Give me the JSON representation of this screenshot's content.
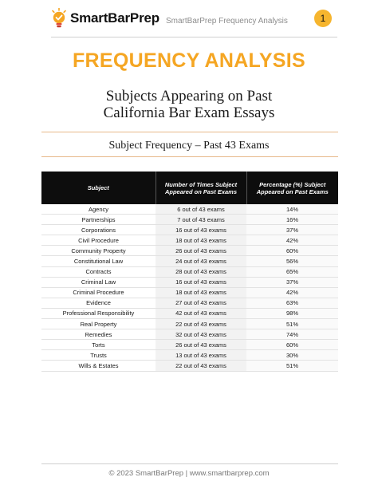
{
  "header": {
    "logo_text": "SmartBarPrep",
    "title": "SmartBarPrep Frequency Analysis",
    "page_number": "1"
  },
  "main": {
    "title": "FREQUENCY ANALYSIS",
    "subtitle_line1": "Subjects Appearing on Past",
    "subtitle_line2": "California Bar Exam Essays",
    "section_title": "Subject Frequency – Past 43 Exams"
  },
  "table": {
    "headers": {
      "subject": "Subject",
      "count": "Number of Times Subject Appeared on Past Exams",
      "percent": "Percentage (%) Subject Appeared on Past Exams"
    },
    "rows": [
      {
        "subject": "Agency",
        "count": "6 out of 43 exams",
        "percent": "14%"
      },
      {
        "subject": "Partnerships",
        "count": "7 out of 43 exams",
        "percent": "16%"
      },
      {
        "subject": "Corporations",
        "count": "16 out of 43 exams",
        "percent": "37%"
      },
      {
        "subject": "Civil Procedure",
        "count": "18 out of 43 exams",
        "percent": "42%"
      },
      {
        "subject": "Community Property",
        "count": "26 out of 43 exams",
        "percent": "60%"
      },
      {
        "subject": "Constitutional Law",
        "count": "24 out of 43 exams",
        "percent": "56%"
      },
      {
        "subject": "Contracts",
        "count": "28 out of 43 exams",
        "percent": "65%"
      },
      {
        "subject": "Criminal Law",
        "count": "16 out of 43 exams",
        "percent": "37%"
      },
      {
        "subject": "Criminal Procedure",
        "count": "18 out of 43 exams",
        "percent": "42%"
      },
      {
        "subject": "Evidence",
        "count": "27 out of 43 exams",
        "percent": "63%"
      },
      {
        "subject": "Professional Responsibility",
        "count": "42 out of 43 exams",
        "percent": "98%"
      },
      {
        "subject": "Real Property",
        "count": "22 out of 43 exams",
        "percent": "51%"
      },
      {
        "subject": "Remedies",
        "count": "32 out of 43 exams",
        "percent": "74%"
      },
      {
        "subject": "Torts",
        "count": "26 out of 43 exams",
        "percent": "60%"
      },
      {
        "subject": "Trusts",
        "count": "13 out of 43 exams",
        "percent": "30%"
      },
      {
        "subject": "Wills & Estates",
        "count": "22 out of 43 exams",
        "percent": "51%"
      }
    ]
  },
  "footer": {
    "text": "© 2023 SmartBarPrep |  www.smartbarprep.com"
  },
  "icons": {
    "logo": "lightbulb-icon"
  },
  "colors": {
    "accent": "#f5a623",
    "badge": "#f6b52e",
    "table_header_bg": "#0d0d0d"
  }
}
